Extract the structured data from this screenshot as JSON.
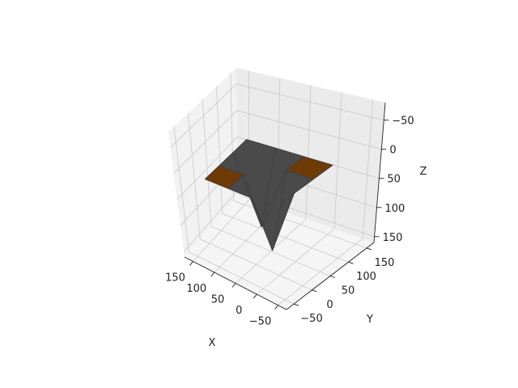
{
  "chart_data": {
    "type": "surface",
    "xlabel": "X",
    "ylabel": "Y",
    "zlabel": "Z",
    "xlim": [
      -70,
      170
    ],
    "ylim": [
      -70,
      170
    ],
    "zlim": [
      -80,
      160
    ],
    "z_inverted": true,
    "x_ticks": [
      150,
      100,
      50,
      0,
      -50
    ],
    "y_ticks": [
      -50,
      0,
      50,
      100,
      150
    ],
    "z_ticks": [
      -50,
      0,
      50,
      100,
      150
    ],
    "grid": true,
    "surface_color": "#6e3a06",
    "edge_color": "#3f3f3f",
    "surface": {
      "x": [
        -10,
        40,
        90,
        140
      ],
      "y": [
        -10,
        40,
        90,
        140
      ],
      "z": [
        [
          30,
          30,
          30,
          30
        ],
        [
          30,
          150,
          30,
          30
        ],
        [
          30,
          30,
          150,
          30
        ],
        [
          30,
          30,
          30,
          30
        ]
      ]
    }
  },
  "colors": {
    "pane_left": "#f2f2f2",
    "pane_right": "#ebebeb",
    "pane_floor": "#f5f5f5",
    "grid": "#c8c8c8",
    "axis_line": "#222222"
  }
}
